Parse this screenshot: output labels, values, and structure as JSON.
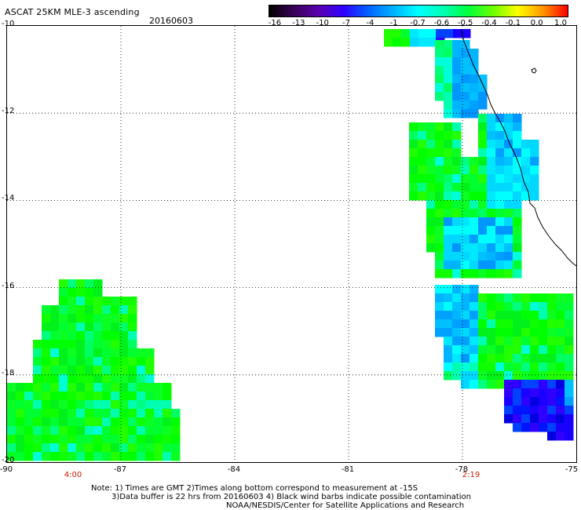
{
  "header": {
    "title": "ASCAT 25KM MLE-3 ascending",
    "date": "20160603"
  },
  "colorbar": {
    "labels": [
      "-16",
      "-13",
      "-10",
      "-7",
      "-4",
      "-1",
      "-0.7",
      "-0.6",
      "-0.5",
      "-0.4",
      "-0.1",
      "0.0",
      "1.0"
    ],
    "colors": [
      "#000000",
      "#3a0058",
      "#5a00b0",
      "#2d00ff",
      "#0064ff",
      "#00b4ff",
      "#00ffff",
      "#00ffb4",
      "#00ff3c",
      "#6cff00",
      "#ffff00",
      "#ff9600",
      "#ff0000"
    ]
  },
  "axes": {
    "y_labels": [
      "-10",
      "-12",
      "-14",
      "-16",
      "-18",
      "-20"
    ],
    "x_labels": [
      "-90",
      "-87",
      "-84",
      "-81",
      "-78",
      "-75"
    ]
  },
  "times": {
    "left": "4:00",
    "right": "2:19"
  },
  "footer": {
    "line1": "Note: 1) Times are GMT 2)Times along bottom correspond to measurement at -15S",
    "line2": "3)Data buffer is 22 hrs from 20160603 4) Black wind barbs indicate possible contamination",
    "line3": "NOAA/NESDIS/Center for Satellite Applications and Research"
  }
}
